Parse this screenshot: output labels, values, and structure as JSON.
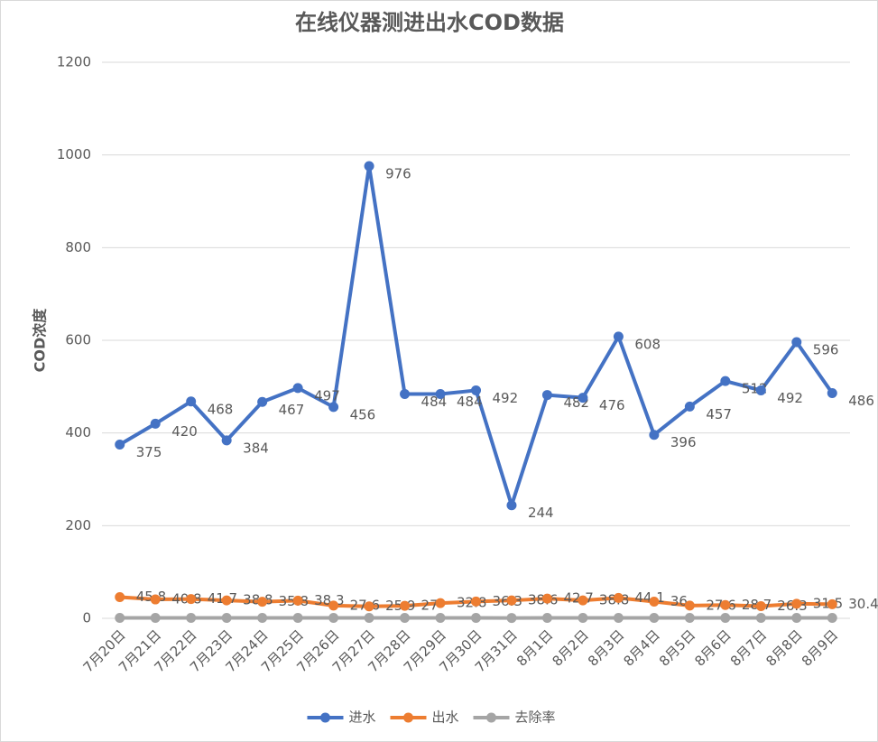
{
  "chart_data": {
    "type": "line",
    "title": "在线仪器测进出水COD数据",
    "y_label": "COD浓度",
    "categories": [
      "7月20日",
      "7月21日",
      "7月22日",
      "7月23日",
      "7月24日",
      "7月25日",
      "7月26日",
      "7月27日",
      "7月28日",
      "7月29日",
      "7月30日",
      "7月31日",
      "8月1日",
      "8月2日",
      "8月3日",
      "8月4日",
      "8月5日",
      "8月6日",
      "8月7日",
      "8月8日",
      "8月9日"
    ],
    "series": [
      {
        "name": "进水",
        "color": "#4472c4",
        "data_labels": true,
        "values": [
          375,
          420,
          468,
          384,
          467,
          497,
          456,
          976,
          484,
          484,
          492,
          244,
          482,
          476,
          608,
          396,
          457,
          512,
          492,
          596,
          486
        ]
      },
      {
        "name": "出水",
        "color": "#ed7d31",
        "data_labels": true,
        "values": [
          45.8,
          40.8,
          41.7,
          38.8,
          35.8,
          38.3,
          27.6,
          25.9,
          27,
          32.8,
          36.3,
          38.6,
          42.7,
          38.8,
          44.1,
          36,
          27.6,
          28.7,
          26.3,
          31.5,
          30.4
        ]
      },
      {
        "name": "去除率",
        "color": "#a5a5a5",
        "data_labels": false,
        "values": [
          0.88,
          0.9,
          0.91,
          0.9,
          0.92,
          0.92,
          0.94,
          0.97,
          0.94,
          0.93,
          0.93,
          0.84,
          0.91,
          0.92,
          0.93,
          0.91,
          0.94,
          0.94,
          0.95,
          0.95,
          0.94
        ]
      }
    ],
    "ylim": [
      0,
      1200
    ],
    "yticks": [
      0,
      200,
      400,
      600,
      800,
      1000,
      1200
    ],
    "grid": true,
    "legend": "bottom"
  }
}
